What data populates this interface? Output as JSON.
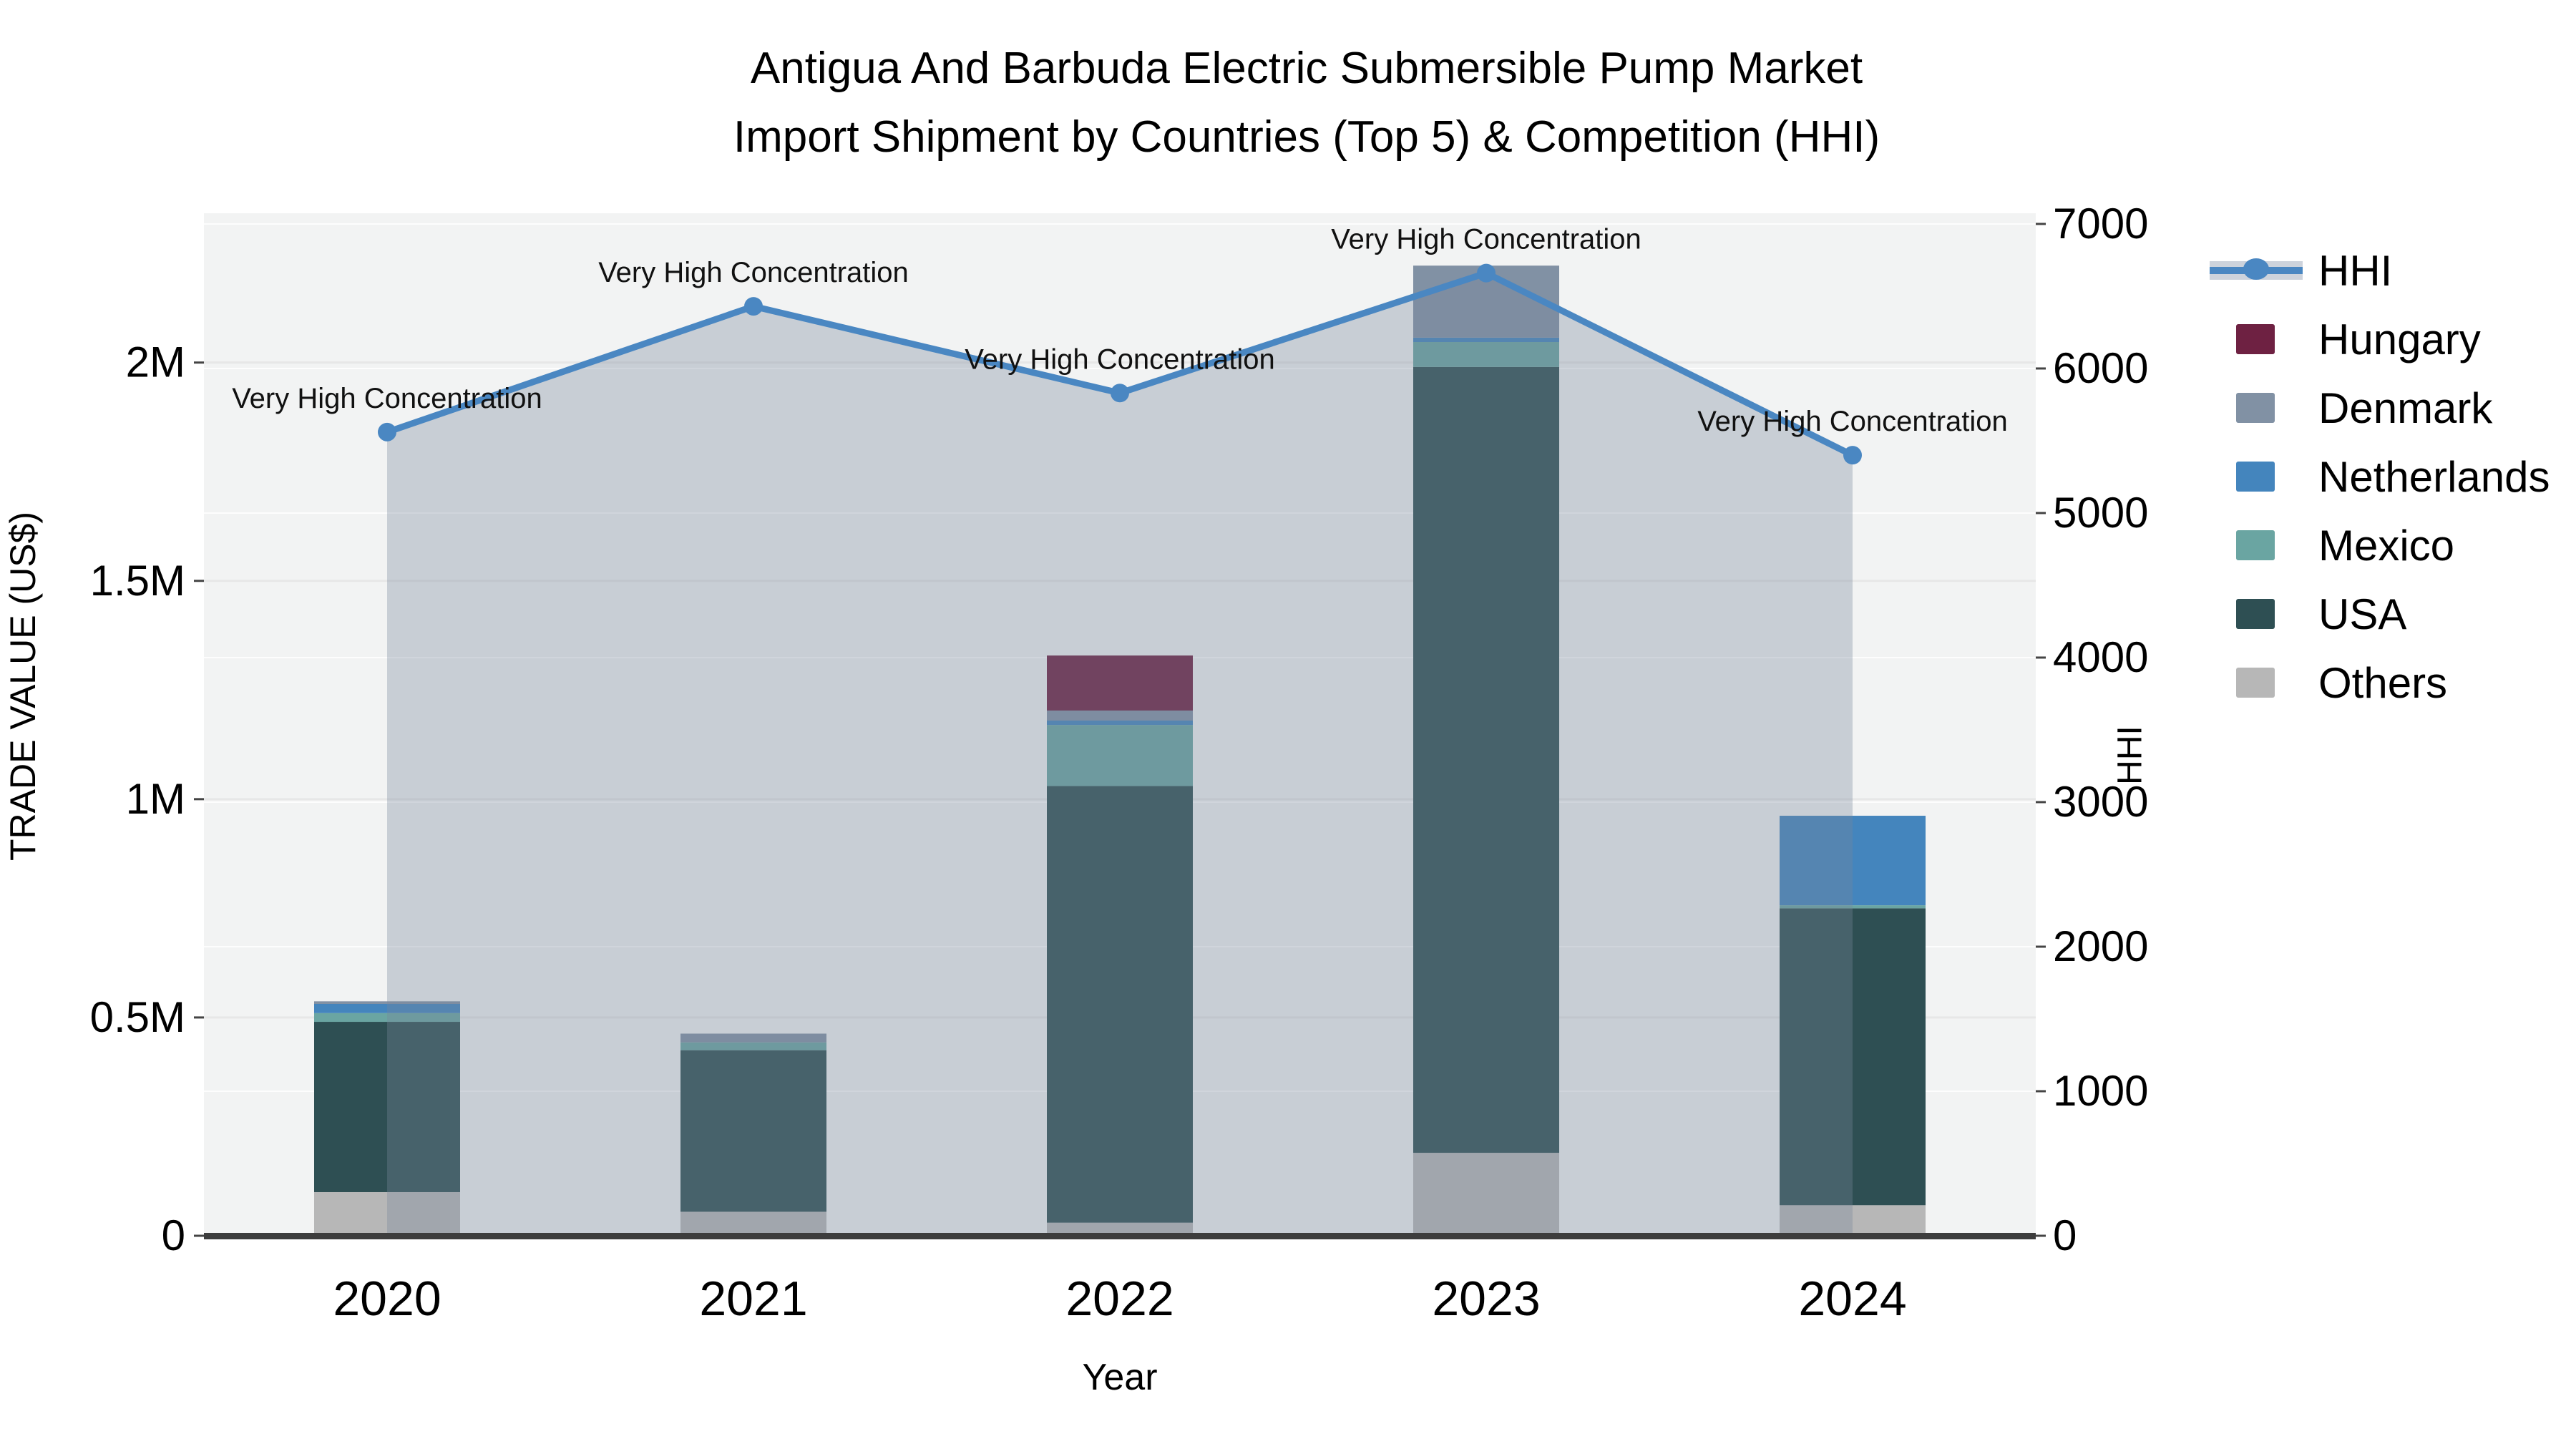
{
  "title": {
    "line1": "Antigua And Barbuda Electric Submersible Pump Market",
    "line2": "Import Shipment by Countries (Top 5) & Competition (HHI)"
  },
  "colors": {
    "plot_background": "#f2f3f3",
    "grid_y1": "#e7e7e7",
    "grid_y2": "#ffffff",
    "axis_line": "#3d3d3d",
    "hhi_line": "#4a87c2",
    "hhi_area_fill": "rgba(120,135,155,0.34)",
    "hungary": "#6e2142",
    "denmark": "#8191a4",
    "netherlands": "#4485bd",
    "mexico": "#6aa5a2",
    "usa": "#2e4f53",
    "others": "#b7b7b7"
  },
  "legend": {
    "items": [
      {
        "label": "HHI",
        "type": "line",
        "color": "#4a87c2",
        "band": "#cdd3dc"
      },
      {
        "label": "Hungary",
        "type": "swatch",
        "color": "#6e2142"
      },
      {
        "label": "Denmark",
        "type": "swatch",
        "color": "#8191a4"
      },
      {
        "label": "Netherlands",
        "type": "swatch",
        "color": "#4485bd"
      },
      {
        "label": "Mexico",
        "type": "swatch",
        "color": "#6aa5a2"
      },
      {
        "label": "USA",
        "type": "swatch",
        "color": "#2e4f53"
      },
      {
        "label": "Others",
        "type": "swatch",
        "color": "#b7b7b7"
      }
    ]
  },
  "chart_data": {
    "type": "combo: stacked bar (trade value by country) + line with shaded area (HHI)",
    "categories": [
      "2020",
      "2021",
      "2022",
      "2023",
      "2024"
    ],
    "bar_series": [
      {
        "name": "Others",
        "color": "#b7b7b7",
        "values": [
          100000,
          55000,
          30000,
          190000,
          70000
        ]
      },
      {
        "name": "USA",
        "color": "#2e4f53",
        "values": [
          390000,
          370000,
          1000000,
          1800000,
          680000
        ]
      },
      {
        "name": "Mexico",
        "color": "#6aa5a2",
        "values": [
          20000,
          18000,
          140000,
          57000,
          7000
        ]
      },
      {
        "name": "Netherlands",
        "color": "#4485bd",
        "values": [
          21000,
          0,
          10000,
          10000,
          205000
        ]
      },
      {
        "name": "Denmark",
        "color": "#8191a4",
        "values": [
          6000,
          20000,
          23000,
          165000,
          0
        ]
      },
      {
        "name": "Hungary",
        "color": "#6e2142",
        "values": [
          0,
          0,
          126000,
          0,
          0
        ]
      }
    ],
    "stack_order_note": "bottom to top: Others, USA, Mexico, Netherlands, Denmark, Hungary",
    "line_series": {
      "name": "HHI",
      "color": "#4a87c2",
      "area_fill": "rgba(120,135,155,0.34)",
      "values": [
        5560,
        6430,
        5830,
        6660,
        5400
      ]
    },
    "annotations": [
      "Very High Concentration",
      "Very High Concentration",
      "Very High Concentration",
      "Very High Concentration",
      "Very High Concentration"
    ],
    "x": {
      "label": "Year"
    },
    "y1": {
      "label": "TRADE VALUE (US$)",
      "ticks": [
        0,
        500000,
        1000000,
        1500000,
        2000000
      ],
      "tick_labels": [
        "0",
        "0.5M",
        "1M",
        "1.5M",
        "2M"
      ],
      "range": [
        0,
        2342000
      ],
      "grid": true
    },
    "y2": {
      "label": "HHI",
      "ticks": [
        0,
        1000,
        2000,
        3000,
        4000,
        5000,
        6000,
        7000
      ],
      "tick_labels": [
        "0",
        "1000",
        "2000",
        "3000",
        "4000",
        "5000",
        "6000",
        "7000"
      ],
      "range": [
        0,
        7074
      ],
      "grid": true
    },
    "legend_position": "right"
  }
}
